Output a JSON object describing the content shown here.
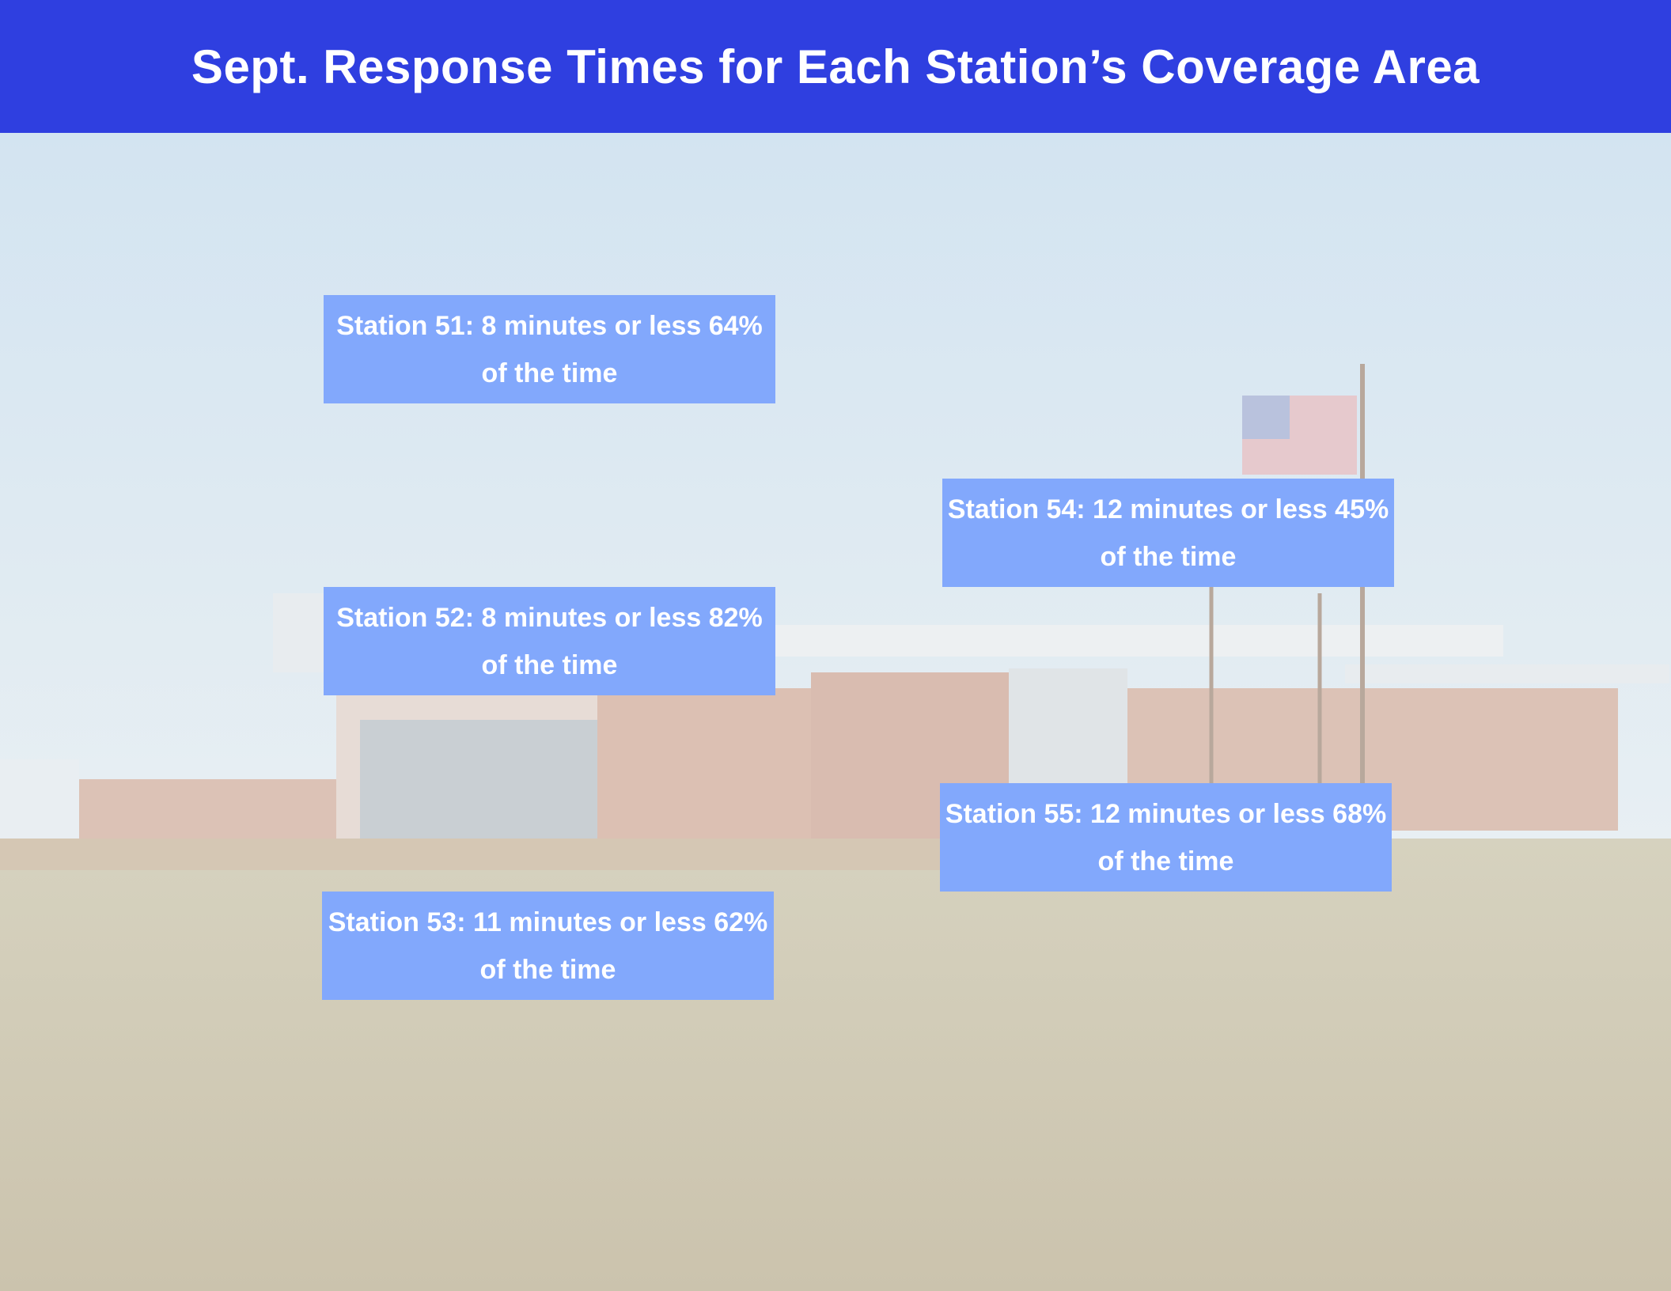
{
  "header": {
    "title": "Sept. Response Times for Each Station’s Coverage Area"
  },
  "stations": [
    {
      "text": "Station 51: 8 minutes or less 64% of the time"
    },
    {
      "text": "Station 52: 8 minutes or less 82% of the time"
    },
    {
      "text": "Station 53: 11 minutes or less 62% of the time"
    },
    {
      "text": "Station 54: 12 minutes or less 45% of the time"
    },
    {
      "text": "Station 55: 12 minutes or less 68% of the time"
    }
  ]
}
